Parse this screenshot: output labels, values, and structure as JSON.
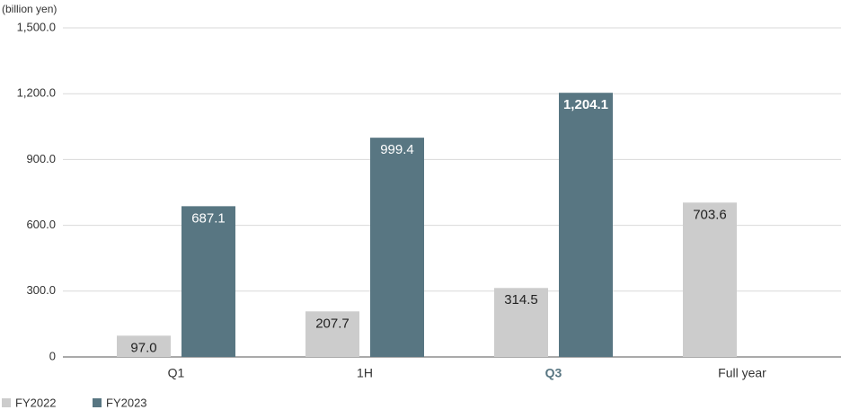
{
  "chart_data": {
    "type": "bar",
    "y_axis_label": "(billion yen)",
    "categories": [
      "Q1",
      "1H",
      "Q3",
      "Full year"
    ],
    "highlight_category": "Q3",
    "series": [
      {
        "name": "FY2022",
        "color": "#cccccc",
        "label_color": "#222222",
        "values": [
          97.0,
          207.7,
          314.5,
          703.6
        ],
        "value_labels": [
          "97.0",
          "207.7",
          "314.5",
          "703.6"
        ]
      },
      {
        "name": "FY2023",
        "color": "#587682",
        "label_color": "#ffffff",
        "values": [
          687.1,
          999.4,
          1204.1,
          null
        ],
        "value_labels": [
          "687.1",
          "999.4",
          "1,204.1",
          null
        ]
      }
    ],
    "ylim": [
      0,
      1500
    ],
    "yticks": [
      0,
      {
        "value": 300,
        "label": "300.0"
      },
      {
        "value": 600,
        "label": "600.0"
      },
      {
        "value": 900,
        "label": "900.0"
      },
      {
        "value": 1200,
        "label": "1,200.0"
      },
      {
        "value": 1500,
        "label": "1,500.0"
      }
    ],
    "grid": true
  }
}
